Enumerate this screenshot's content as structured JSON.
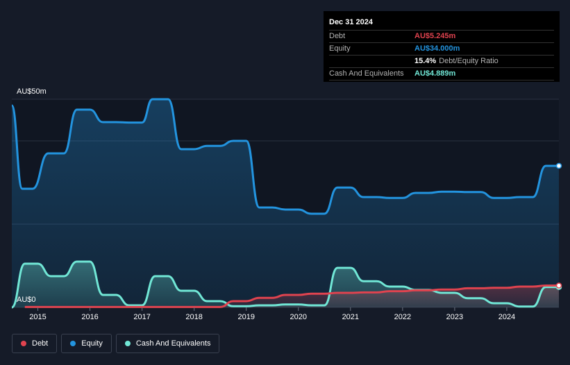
{
  "tooltip": {
    "date": "Dec 31 2024",
    "debt_label": "Debt",
    "debt_value": "AU$5.245m",
    "equity_label": "Equity",
    "equity_value": "AU$34.000m",
    "ratio_value": "15.4%",
    "ratio_label": "Debt/Equity Ratio",
    "cash_label": "Cash And Equivalents",
    "cash_value": "AU$4.889m"
  },
  "legend": {
    "debt": "Debt",
    "equity": "Equity",
    "cash": "Cash And Equivalents"
  },
  "colors": {
    "debt": "#e0434f",
    "equity": "#2394df",
    "cash": "#71e7d6",
    "background": "#151b28"
  },
  "chart_data": {
    "type": "line",
    "ylabel_top": "AU$50m",
    "ylabel_bottom": "AU$0",
    "ylim": [
      0,
      50
    ],
    "xlim": [
      2014.5,
      2025.0
    ],
    "x_ticks": [
      "2015",
      "2016",
      "2017",
      "2018",
      "2019",
      "2020",
      "2021",
      "2022",
      "2023",
      "2024"
    ],
    "grid": true,
    "legend_position": "bottom-left",
    "series": [
      {
        "name": "Equity",
        "x": [
          2014.5,
          2014.7,
          2014.9,
          2015.2,
          2015.5,
          2015.75,
          2016.0,
          2016.25,
          2016.5,
          2016.75,
          2017.0,
          2017.2,
          2017.5,
          2017.75,
          2018.0,
          2018.25,
          2018.5,
          2018.75,
          2019.0,
          2019.25,
          2019.5,
          2019.75,
          2020.0,
          2020.25,
          2020.5,
          2020.75,
          2021.0,
          2021.25,
          2021.5,
          2021.75,
          2022.0,
          2022.25,
          2022.5,
          2022.75,
          2023.0,
          2023.25,
          2023.5,
          2023.75,
          2024.0,
          2024.25,
          2024.5,
          2024.75,
          2025.0
        ],
        "values": [
          48.5,
          28.5,
          28.5,
          37.0,
          37.0,
          47.5,
          47.5,
          44.5,
          44.5,
          44.4,
          44.4,
          50.0,
          50.0,
          38.0,
          38.0,
          38.8,
          38.8,
          40.0,
          40.0,
          24.0,
          24.0,
          23.5,
          23.5,
          22.5,
          22.5,
          28.8,
          28.8,
          26.5,
          26.5,
          26.3,
          26.3,
          27.5,
          27.5,
          27.8,
          27.8,
          27.7,
          27.7,
          26.3,
          26.3,
          26.5,
          26.5,
          34.0,
          34.0
        ]
      },
      {
        "name": "Cash And Equivalents",
        "x": [
          2014.5,
          2014.75,
          2015.0,
          2015.25,
          2015.5,
          2015.75,
          2016.0,
          2016.25,
          2016.5,
          2016.75,
          2017.0,
          2017.25,
          2017.5,
          2017.75,
          2018.0,
          2018.25,
          2018.5,
          2018.75,
          2019.0,
          2019.25,
          2019.5,
          2019.75,
          2020.0,
          2020.25,
          2020.5,
          2020.75,
          2021.0,
          2021.25,
          2021.5,
          2021.75,
          2022.0,
          2022.25,
          2022.5,
          2022.75,
          2023.0,
          2023.25,
          2023.5,
          2023.75,
          2024.0,
          2024.25,
          2024.5,
          2024.75,
          2025.0
        ],
        "values": [
          0.0,
          10.5,
          10.5,
          7.5,
          7.5,
          11.0,
          11.0,
          3.0,
          3.0,
          0.5,
          0.5,
          7.5,
          7.5,
          4.0,
          4.0,
          1.5,
          1.5,
          0.3,
          0.3,
          0.5,
          0.5,
          0.7,
          0.7,
          0.5,
          0.5,
          9.5,
          9.5,
          6.3,
          6.3,
          5.0,
          5.0,
          4.2,
          4.2,
          3.5,
          3.5,
          2.2,
          2.2,
          1.0,
          1.0,
          0.2,
          0.2,
          4.889,
          4.889
        ]
      },
      {
        "name": "Debt",
        "x": [
          2014.75,
          2015.0,
          2015.5,
          2016.0,
          2016.5,
          2017.0,
          2017.5,
          2018.0,
          2018.5,
          2018.75,
          2019.0,
          2019.25,
          2019.5,
          2019.75,
          2020.0,
          2020.25,
          2020.5,
          2020.75,
          2021.0,
          2021.25,
          2021.5,
          2021.75,
          2022.0,
          2022.25,
          2022.5,
          2022.75,
          2023.0,
          2023.25,
          2023.5,
          2023.75,
          2024.0,
          2024.25,
          2024.5,
          2024.75,
          2025.0
        ],
        "values": [
          0.1,
          0.1,
          0.1,
          0.1,
          0.1,
          0.1,
          0.1,
          0.1,
          0.1,
          1.5,
          1.5,
          2.3,
          2.3,
          3.0,
          3.0,
          3.3,
          3.3,
          3.5,
          3.5,
          3.6,
          3.6,
          3.9,
          3.9,
          4.1,
          4.1,
          4.3,
          4.3,
          4.6,
          4.6,
          4.7,
          4.7,
          5.0,
          5.0,
          5.245,
          5.245
        ]
      }
    ]
  }
}
